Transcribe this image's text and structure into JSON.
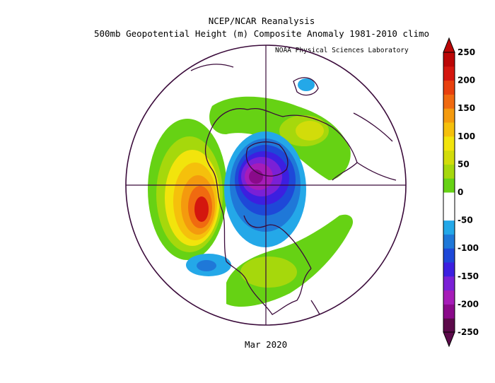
{
  "header": {
    "title_line1": "NCEP/NCAR Reanalysis",
    "title_line2": "500mb Geopotential Height (m) Composite Anomaly 1981-2010 climo",
    "credit": "NOAA Physical Sciences Laboratory"
  },
  "footer": {
    "date": "Mar 2020"
  },
  "colorbar": {
    "ticks": [
      "250",
      "200",
      "150",
      "100",
      "50",
      "0",
      "-50",
      "-100",
      "-150",
      "-200",
      "-250"
    ],
    "colors": [
      "#5c0a4a",
      "#8a0a8a",
      "#a61cb8",
      "#7a20d6",
      "#3c1fe0",
      "#1e48d8",
      "#1f78d8",
      "#24a8e8",
      "#ffffff",
      "#ffffff",
      "#66d214",
      "#a6d80c",
      "#d2dc0a",
      "#f2e40c",
      "#f5c00c",
      "#f49a0e",
      "#f06a10",
      "#e8400e",
      "#d4160e",
      "#bb0606"
    ]
  }
}
